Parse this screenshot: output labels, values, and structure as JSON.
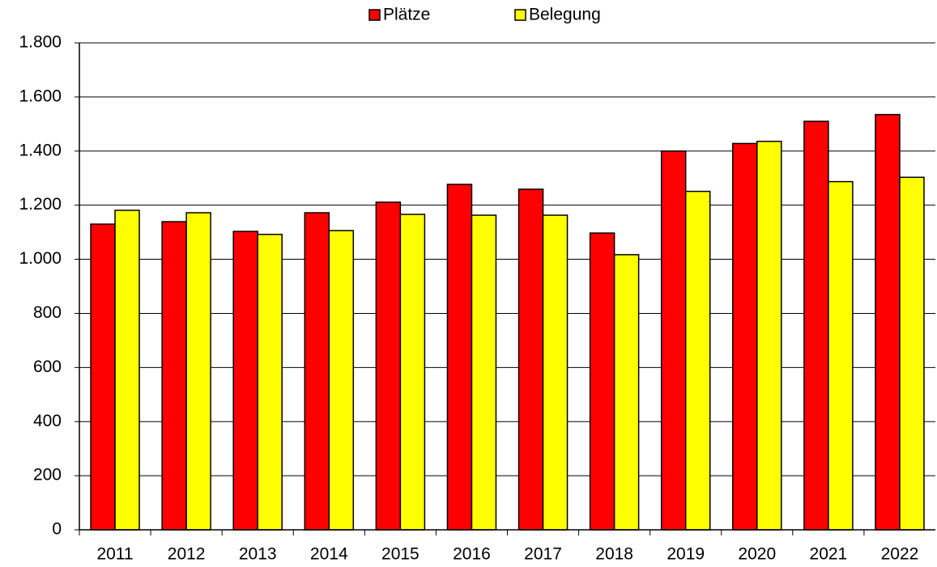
{
  "chart_data": {
    "type": "bar",
    "categories": [
      "2011",
      "2012",
      "2013",
      "2014",
      "2015",
      "2016",
      "2017",
      "2018",
      "2019",
      "2020",
      "2021",
      "2022"
    ],
    "series": [
      {
        "name": "Plätze",
        "color": "#ff0000",
        "values": [
          1130,
          1139,
          1103,
          1172,
          1211,
          1277,
          1259,
          1097,
          1400,
          1428,
          1510,
          1535
        ]
      },
      {
        "name": "Belegung",
        "color": "#ffff00",
        "values": [
          1181,
          1172,
          1092,
          1106,
          1166,
          1163,
          1163,
          1017,
          1251,
          1436,
          1287,
          1303
        ]
      }
    ],
    "ylim": [
      0,
      1800
    ],
    "yticks": [
      0,
      200,
      400,
      600,
      800,
      {
        "value": 1000,
        "label": "1.000"
      },
      {
        "value": 1200,
        "label": "1.200"
      },
      {
        "value": 1400,
        "label": "1.400"
      },
      {
        "value": 1600,
        "label": "1.600"
      },
      {
        "value": 1800,
        "label": "1.800"
      }
    ],
    "grid": true,
    "legend": "top"
  }
}
